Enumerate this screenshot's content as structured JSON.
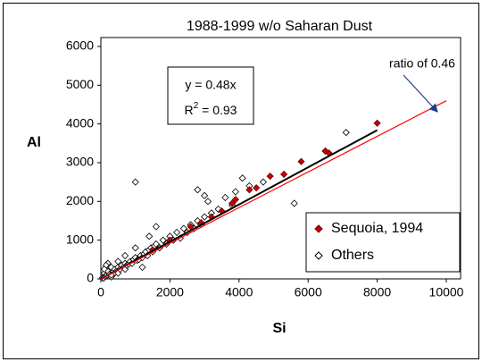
{
  "chart_data": {
    "type": "scatter",
    "title": "1988-1999 w/o Saharan Dust",
    "x_label": "Si",
    "y_label": "Al",
    "xlim": [
      0,
      10000
    ],
    "xticks": [
      0,
      2000,
      4000,
      6000,
      8000,
      10000
    ],
    "ylim": [
      0,
      6000
    ],
    "yticks": [
      0,
      1000,
      2000,
      3000,
      4000,
      5000,
      6000
    ],
    "legend": "lower right",
    "series": [
      {
        "name": "Sequoia, 1994",
        "color": "#cc0000",
        "filled": true,
        "x": [
          8000,
          6600,
          6500,
          5800,
          5300,
          4900,
          4500,
          4300,
          3900,
          3800,
          3500,
          3200,
          2900,
          2600,
          2000,
          1500
        ],
        "values": [
          4020,
          3250,
          3300,
          3030,
          2700,
          2650,
          2350,
          2300,
          2050,
          1950,
          1750,
          1600,
          1450,
          1350,
          1000,
          750
        ]
      },
      {
        "name": "Others",
        "color": "#000000",
        "filled": false,
        "x": [
          50,
          80,
          100,
          120,
          150,
          180,
          200,
          250,
          300,
          300,
          350,
          400,
          400,
          450,
          500,
          500,
          550,
          600,
          650,
          700,
          700,
          750,
          800,
          850,
          900,
          950,
          1000,
          1000,
          1050,
          1100,
          1150,
          1200,
          1250,
          1300,
          1350,
          1400,
          1450,
          1500,
          1550,
          1600,
          1700,
          1800,
          1900,
          2000,
          2100,
          2200,
          2300,
          2400,
          2500,
          2600,
          2700,
          2800,
          2900,
          3000,
          3100,
          3200,
          3400,
          3600,
          3800,
          4100,
          4300,
          4700,
          5600,
          6500,
          7100,
          3900,
          1000,
          1200,
          1400,
          1600,
          2800,
          3000,
          200,
          500,
          150,
          300,
          100,
          700
        ],
        "values": [
          30,
          20,
          150,
          60,
          80,
          100,
          200,
          120,
          50,
          300,
          180,
          150,
          250,
          200,
          300,
          150,
          250,
          350,
          300,
          400,
          250,
          350,
          380,
          450,
          400,
          500,
          550,
          2500,
          480,
          500,
          600,
          550,
          650,
          700,
          600,
          750,
          800,
          700,
          850,
          900,
          800,
          1000,
          900,
          1100,
          1000,
          1200,
          1050,
          1300,
          1200,
          1400,
          1300,
          1500,
          1400,
          1600,
          2000,
          1700,
          1800,
          2100,
          1900,
          2600,
          2400,
          2500,
          1950,
          3300,
          3780,
          2250,
          800,
          300,
          1100,
          1350,
          2300,
          2150,
          400,
          450,
          350,
          100,
          250,
          600
        ]
      }
    ],
    "trend_lines": [
      {
        "color": "#000000",
        "x": [
          0,
          8000
        ],
        "values": [
          0,
          3840
        ]
      },
      {
        "color": "#ff0000",
        "x": [
          0,
          10000
        ],
        "values": [
          0,
          4600
        ]
      }
    ],
    "annotations": {
      "equation": "y = 0.48x",
      "r_squared": {
        "base": "R",
        "sup": "2",
        "rest": " = 0.93"
      },
      "ratio": "ratio of 0.46"
    }
  }
}
